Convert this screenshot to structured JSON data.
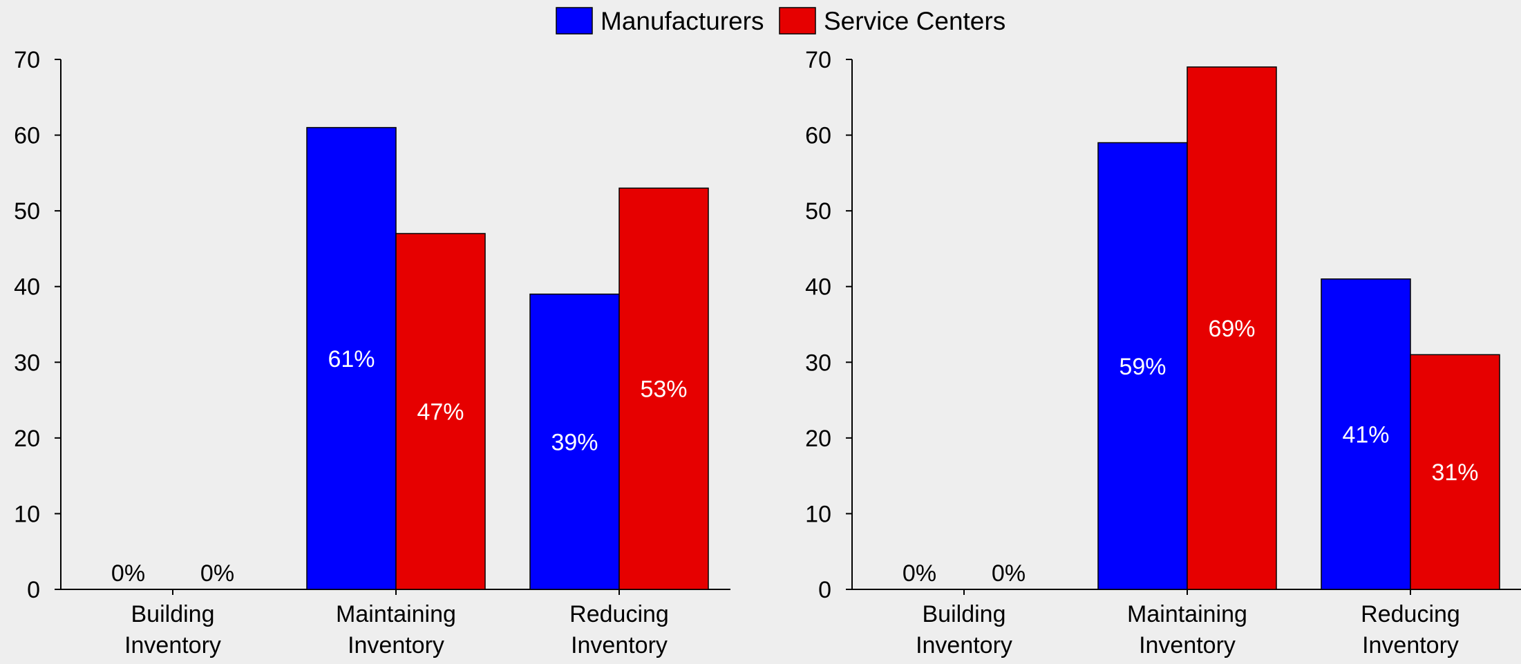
{
  "legend": {
    "placement": "top-center",
    "items": [
      {
        "label": "Manufacturers",
        "color": "#0000ff"
      },
      {
        "label": "Service Centers",
        "color": "#e60000"
      }
    ]
  },
  "chart_data": [
    {
      "type": "bar",
      "categories": [
        [
          "Building",
          "Inventory"
        ],
        [
          "Maintaining",
          "Inventory"
        ],
        [
          "Reducing",
          "Inventory"
        ]
      ],
      "series": [
        {
          "name": "Manufacturers",
          "color": "#0000ff",
          "values": [
            0,
            61,
            39
          ],
          "labels": [
            "0%",
            "61%",
            "39%"
          ]
        },
        {
          "name": "Service Centers",
          "color": "#e60000",
          "values": [
            0,
            47,
            53
          ],
          "labels": [
            "0%",
            "47%",
            "53%"
          ]
        }
      ],
      "ylim": [
        0,
        70
      ],
      "yticks": [
        0,
        10,
        20,
        30,
        40,
        50,
        60,
        70
      ],
      "grid": false
    },
    {
      "type": "bar",
      "categories": [
        [
          "Building",
          "Inventory"
        ],
        [
          "Maintaining",
          "Inventory"
        ],
        [
          "Reducing",
          "Inventory"
        ]
      ],
      "series": [
        {
          "name": "Manufacturers",
          "color": "#0000ff",
          "values": [
            0,
            59,
            41
          ],
          "labels": [
            "0%",
            "59%",
            "41%"
          ]
        },
        {
          "name": "Service Centers",
          "color": "#e60000",
          "values": [
            0,
            69,
            31
          ],
          "labels": [
            "0%",
            "69%",
            "31%"
          ]
        }
      ],
      "ylim": [
        0,
        70
      ],
      "yticks": [
        0,
        10,
        20,
        30,
        40,
        50,
        60,
        70
      ],
      "grid": false
    }
  ]
}
